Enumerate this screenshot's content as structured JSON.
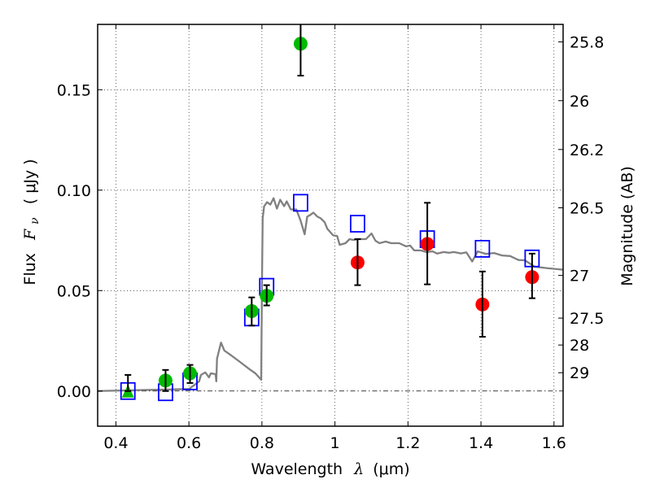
{
  "chart_data": {
    "type": "scatter",
    "title": "",
    "xlabel": "Wavelength  λ (μm)",
    "ylabel": "Flux  Fν  ( μJy )",
    "ylabel_parts": {
      "prefix": "Flux",
      "symbol": "F",
      "subscript": "ν",
      "unit": "( μJy )"
    },
    "xlabel_parts": {
      "prefix": "Wavelength",
      "symbol": "λ",
      "unit": "(μm)"
    },
    "ylabel_right": "Magnitude (AB)",
    "xlim": [
      0.35,
      1.625
    ],
    "ylim": [
      -0.0175,
      0.1825
    ],
    "grid": true,
    "x_ticks": [
      0.4,
      0.6,
      0.8,
      1.0,
      1.2,
      1.4,
      1.6
    ],
    "x_tick_labels": [
      "0.4",
      "0.6",
      "0.8",
      "1",
      "1.2",
      "1.4",
      "1.6"
    ],
    "y_ticks": [
      0.0,
      0.05,
      0.1,
      0.15
    ],
    "y_tick_labels": [
      "0.00",
      "0.05",
      "0.10",
      "0.15"
    ],
    "right_axis": {
      "label": "Magnitude (AB)",
      "zero_point": 23.9,
      "ticks": [
        25.8,
        26,
        26.2,
        26.5,
        27,
        27.5,
        28,
        29
      ],
      "tick_labels": [
        "25.8",
        "26",
        "26.2",
        "26.5",
        "27",
        "27.5",
        "28",
        "29"
      ]
    },
    "colors": {
      "model": "#808080",
      "optical_obs": "#00bb00",
      "nir_obs": "#ff0000",
      "synthetic": "#0000ff",
      "errorbar": "#000000"
    },
    "series": [
      {
        "name": "model SED",
        "kind": "line",
        "x": [
          0.35,
          0.6,
          0.628,
          0.633,
          0.645,
          0.655,
          0.66,
          0.673,
          0.675,
          0.677,
          0.688,
          0.697,
          0.71,
          0.737,
          0.766,
          0.782,
          0.798,
          0.8,
          0.802,
          0.806,
          0.814,
          0.823,
          0.832,
          0.841,
          0.85,
          0.861,
          0.868,
          0.879,
          0.894,
          0.906,
          0.917,
          0.924,
          0.932,
          0.941,
          0.952,
          0.961,
          0.972,
          0.979,
          0.995,
          1.006,
          1.013,
          1.029,
          1.04,
          1.051,
          1.065,
          1.085,
          1.1,
          1.111,
          1.122,
          1.139,
          1.154,
          1.176,
          1.195,
          1.206,
          1.217,
          1.235,
          1.25,
          1.268,
          1.28,
          1.298,
          1.313,
          1.326,
          1.345,
          1.36,
          1.376,
          1.391,
          1.413,
          1.436,
          1.458,
          1.48,
          1.503,
          1.52,
          1.547,
          1.58,
          1.625
        ],
        "y": [
          0.0,
          0.001,
          0.0048,
          0.008,
          0.0093,
          0.0068,
          0.0088,
          0.0084,
          0.0048,
          0.0161,
          0.0241,
          0.0201,
          0.0185,
          0.0149,
          0.0109,
          0.0088,
          0.0056,
          0.052,
          0.086,
          0.092,
          0.094,
          0.0928,
          0.096,
          0.0908,
          0.0952,
          0.092,
          0.0944,
          0.0904,
          0.0904,
          0.0848,
          0.078,
          0.0868,
          0.0876,
          0.0888,
          0.0868,
          0.086,
          0.084,
          0.0808,
          0.0775,
          0.0772,
          0.0728,
          0.0736,
          0.0756,
          0.0752,
          0.0756,
          0.0756,
          0.0784,
          0.0748,
          0.0736,
          0.0744,
          0.0736,
          0.0736,
          0.072,
          0.0724,
          0.07,
          0.07,
          0.0692,
          0.0695,
          0.0684,
          0.0692,
          0.0688,
          0.0692,
          0.0685,
          0.069,
          0.0645,
          0.0695,
          0.0683,
          0.0687,
          0.0675,
          0.0672,
          0.0652,
          0.0651,
          0.0619,
          0.0612,
          0.0604
        ]
      },
      {
        "name": "optical detections",
        "kind": "points-with-errors",
        "marker": "circle",
        "x": [
          0.536,
          0.603,
          0.772,
          0.813,
          0.906
        ],
        "y": [
          0.0052,
          0.0088,
          0.0398,
          0.0474,
          0.1729
        ],
        "yerr_low": [
          0.0052,
          0.0048,
          0.0072,
          0.0048,
          0.0159
        ],
        "yerr_high": [
          0.0053,
          0.0042,
          0.0068,
          0.0053,
          0.0159
        ]
      },
      {
        "name": "optical upper limit",
        "kind": "points-with-errors",
        "marker": "triangle-up",
        "x": [
          0.433
        ],
        "y": [
          0.0
        ],
        "yerr_low": [
          0.0
        ],
        "yerr_high": [
          0.008
        ]
      },
      {
        "name": "near-IR detections",
        "kind": "points-with-errors",
        "marker": "circle",
        "x": [
          1.062,
          1.253,
          1.404,
          1.54
        ],
        "y": [
          0.064,
          0.0732,
          0.0431,
          0.0567
        ],
        "yerr_low": [
          0.0113,
          0.0201,
          0.0161,
          0.0105
        ],
        "yerr_high": [
          0.0116,
          0.0205,
          0.0164,
          0.0117
        ]
      },
      {
        "name": "model synthetic photometry",
        "kind": "points",
        "marker": "open-square",
        "x": [
          0.433,
          0.536,
          0.603,
          0.772,
          0.813,
          0.906,
          1.062,
          1.253,
          1.404,
          1.54
        ],
        "y": [
          0.0,
          -0.0006,
          0.0048,
          0.0366,
          0.0519,
          0.0937,
          0.0833,
          0.0756,
          0.0708,
          0.066
        ]
      }
    ]
  }
}
